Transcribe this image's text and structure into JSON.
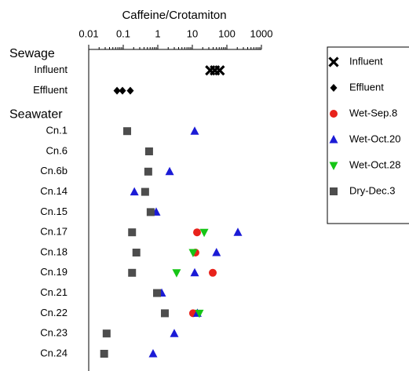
{
  "chart_data": {
    "type": "dot",
    "title": "Caffeine/Crotamiton",
    "xscale": "log",
    "xlim": [
      0.01,
      1000
    ],
    "xticks": [
      0.01,
      0.1,
      1,
      10,
      100,
      1000
    ],
    "groups": [
      {
        "name": "Sewage",
        "categories": [
          "Influent",
          "Effluent"
        ]
      },
      {
        "name": "Seawater",
        "categories": [
          "Cn.1",
          "Cn.6",
          "Cn.6b",
          "Cn.14",
          "Cn.15",
          "Cn.17",
          "Cn.18",
          "Cn.19",
          "Cn.21",
          "Cn.22",
          "Cn.23",
          "Cn.24"
        ]
      }
    ],
    "legend": "right",
    "series": [
      {
        "name": "Influent",
        "color": "#000000",
        "marker": "x",
        "values": [
          [
            33,
            45,
            62
          ],
          null,
          null,
          null,
          null,
          null,
          null,
          null,
          null,
          null,
          null,
          null,
          null,
          null
        ]
      },
      {
        "name": "Effluent",
        "color": "#000000",
        "marker": "diamond",
        "values": [
          null,
          [
            0.066,
            0.095,
            0.16
          ],
          null,
          null,
          null,
          null,
          null,
          null,
          null,
          null,
          null,
          null,
          null,
          null
        ]
      },
      {
        "name": "Wet-Sep.8",
        "color": "#e8221b",
        "marker": "circle",
        "values": [
          null,
          null,
          null,
          null,
          null,
          null,
          null,
          13.7,
          12.3,
          39,
          null,
          10.5,
          null,
          null
        ]
      },
      {
        "name": "Wet-Oct.20",
        "color": "#1b1bd6",
        "marker": "triangle-up",
        "values": [
          null,
          null,
          11.7,
          null,
          2.2,
          0.21,
          0.9,
          208,
          50,
          11.7,
          1.3,
          14,
          3,
          0.73
        ]
      },
      {
        "name": "Wet-Oct.28",
        "color": "#16c516",
        "marker": "triangle-down",
        "values": [
          null,
          null,
          null,
          null,
          null,
          null,
          null,
          22,
          10.5,
          3.5,
          null,
          16,
          null,
          null
        ]
      },
      {
        "name": "Dry-Dec.3",
        "color": "#4d4d4d",
        "marker": "square",
        "values": [
          null,
          null,
          0.13,
          0.56,
          0.53,
          0.43,
          0.62,
          0.18,
          0.24,
          0.18,
          0.95,
          1.6,
          0.033,
          0.028
        ]
      }
    ]
  }
}
